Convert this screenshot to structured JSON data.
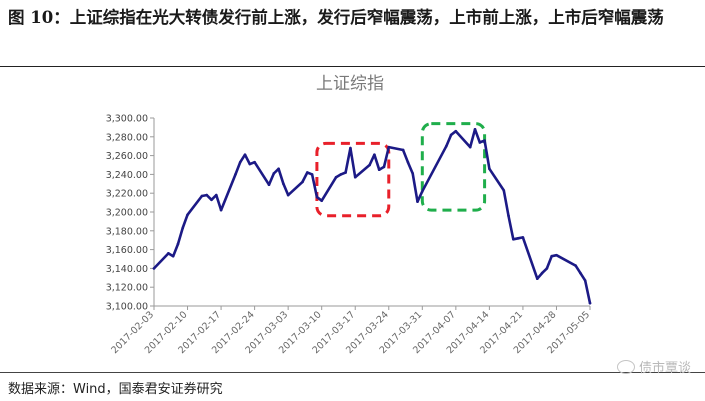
{
  "caption": "图 10：上证综指在光大转债发行前上涨，发行后窄幅震荡，上市前上涨，上市后窄幅震荡",
  "source_note": "数据来源：Wind，国泰君安证券研究",
  "watermark": "债市覃谈",
  "colors": {
    "line": "#1c1a86",
    "red_box": "#e8202a",
    "green_box": "#1fae4b",
    "axis_text": "#666666"
  },
  "chart_data": {
    "type": "line",
    "title": "上证综指",
    "ylim": [
      3100,
      3300
    ],
    "y_ticks": [
      "3,100.00",
      "3,120.00",
      "3,140.00",
      "3,160.00",
      "3,180.00",
      "3,200.00",
      "3,220.00",
      "3,240.00",
      "3,260.00",
      "3,280.00",
      "3,300.00"
    ],
    "x_ticks": [
      "2017-02-03",
      "2017-02-10",
      "2017-02-17",
      "2017-02-24",
      "2017-03-03",
      "2017-03-10",
      "2017-03-17",
      "2017-03-24",
      "2017-03-31",
      "2017-04-07",
      "2017-04-14",
      "2017-04-21",
      "2017-04-28",
      "2017-05-05"
    ],
    "grid": false,
    "series": [
      {
        "x": [
          "2017-02-03",
          "2017-02-06",
          "2017-02-07",
          "2017-02-08",
          "2017-02-09",
          "2017-02-10",
          "2017-02-13",
          "2017-02-14",
          "2017-02-15",
          "2017-02-16",
          "2017-02-17",
          "2017-02-20",
          "2017-02-21",
          "2017-02-22",
          "2017-02-23",
          "2017-02-24",
          "2017-02-27",
          "2017-02-28",
          "2017-03-01",
          "2017-03-02",
          "2017-03-03",
          "2017-03-06",
          "2017-03-07",
          "2017-03-08",
          "2017-03-09",
          "2017-03-10",
          "2017-03-13",
          "2017-03-14",
          "2017-03-15",
          "2017-03-16",
          "2017-03-17",
          "2017-03-20",
          "2017-03-21",
          "2017-03-22",
          "2017-03-23",
          "2017-03-24",
          "2017-03-27",
          "2017-03-28",
          "2017-03-29",
          "2017-03-30",
          "2017-03-31",
          "2017-04-05",
          "2017-04-06",
          "2017-04-07",
          "2017-04-10",
          "2017-04-11",
          "2017-04-12",
          "2017-04-13",
          "2017-04-14",
          "2017-04-17",
          "2017-04-18",
          "2017-04-19",
          "2017-04-20",
          "2017-04-21",
          "2017-04-24",
          "2017-04-25",
          "2017-04-26",
          "2017-04-27",
          "2017-04-28",
          "2017-05-02",
          "2017-05-03",
          "2017-05-04",
          "2017-05-05"
        ],
        "values": [
          3140,
          3156,
          3153,
          3166,
          3183,
          3197,
          3217,
          3218,
          3213,
          3218,
          3202,
          3240,
          3253,
          3261,
          3251,
          3253,
          3229,
          3241,
          3246,
          3230,
          3218,
          3232,
          3242,
          3240,
          3216,
          3212,
          3237,
          3240,
          3242,
          3268,
          3237,
          3250,
          3261,
          3245,
          3248,
          3269,
          3266,
          3253,
          3241,
          3211,
          3222,
          3270,
          3282,
          3286,
          3269,
          3288,
          3274,
          3276,
          3246,
          3223,
          3196,
          3171,
          3172,
          3173,
          3129,
          3135,
          3140,
          3153,
          3154,
          3143,
          3135,
          3127,
          3103
        ]
      }
    ],
    "annotations": [
      {
        "style": "dashed-box",
        "color": "red",
        "x_from": "2017-03-09",
        "x_to": "2017-03-24",
        "y_from": 3196,
        "y_to": 3273
      },
      {
        "style": "dashed-box",
        "color": "green",
        "x_from": "2017-03-31",
        "x_to": "2017-04-13",
        "y_from": 3202,
        "y_to": 3294
      }
    ]
  }
}
